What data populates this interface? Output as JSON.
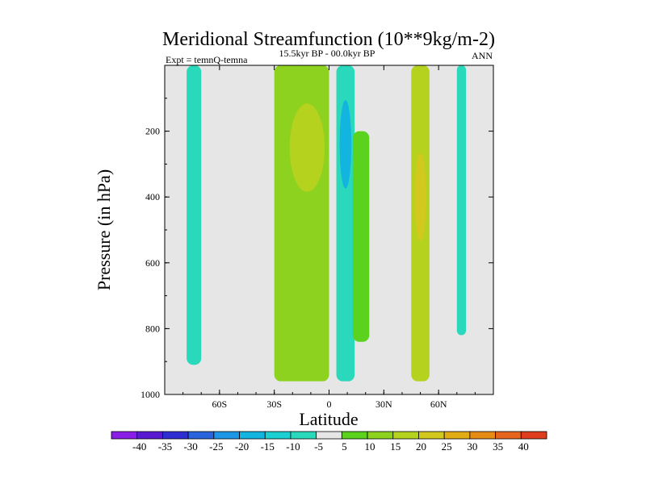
{
  "chart_data": {
    "type": "contour",
    "title": "Meridional Streamfunction (10**9kg/m-2)",
    "subtitle": "15.5kyr BP - 00.0kyr BP",
    "left_label": "Expt = temnQ-temna",
    "right_label": "ANN",
    "xlabel": "Latitude",
    "ylabel": "Pressure (in hPa)",
    "xlim": [
      -90,
      90
    ],
    "ylim": [
      1000,
      0
    ],
    "x_ticks": [
      {
        "value": -60,
        "label": "60S"
      },
      {
        "value": -30,
        "label": "30S"
      },
      {
        "value": 0,
        "label": "0"
      },
      {
        "value": 30,
        "label": "30N"
      },
      {
        "value": 60,
        "label": "60N"
      }
    ],
    "y_ticks": [
      {
        "value": 200,
        "label": "200"
      },
      {
        "value": 400,
        "label": "400"
      },
      {
        "value": 600,
        "label": "600"
      },
      {
        "value": 800,
        "label": "800"
      },
      {
        "value": 1000,
        "label": "1000"
      }
    ],
    "colorbar": {
      "colors": [
        "#8a1ee6",
        "#5a1ad2",
        "#2e2ed2",
        "#2a64dc",
        "#1e96e6",
        "#14b4e0",
        "#1ccfd2",
        "#2ad8bc",
        "#e6e6e6",
        "#5ad21e",
        "#8cd21e",
        "#b4d21e",
        "#d2c81e",
        "#e1ac14",
        "#e68c14",
        "#e6641e",
        "#e03c1e"
      ],
      "labels": [
        "-40",
        "-35",
        "-30",
        "-25",
        "-20",
        "-15",
        "-10",
        "-5",
        "5",
        "10",
        "15",
        "20",
        "25",
        "30",
        "35",
        "40"
      ]
    },
    "features": [
      {
        "name": "southern-high-latitude-cell",
        "x_range": [
          -78,
          -70
        ],
        "p_range": [
          0,
          910
        ],
        "value": -7
      },
      {
        "name": "southern-subtropical-cell",
        "x_range": [
          -30,
          0
        ],
        "p_range": [
          0,
          960
        ],
        "value": 10,
        "max": 18,
        "max_at": {
          "x": -12,
          "p": 250
        }
      },
      {
        "name": "equatorial-negative-cell",
        "x_range": [
          4,
          14
        ],
        "p_range": [
          0,
          960
        ],
        "value": -8,
        "min": -15,
        "min_at": {
          "x": 9,
          "p": 240
        }
      },
      {
        "name": "northern-subtropical-cell",
        "x_range": [
          13,
          22
        ],
        "p_range": [
          200,
          840
        ],
        "value": 9
      },
      {
        "name": "northern-midlatitude-cell",
        "x_range": [
          45,
          55
        ],
        "p_range": [
          0,
          960
        ],
        "value": 15,
        "max": 20,
        "max_at": {
          "x": 50,
          "p": 400
        }
      },
      {
        "name": "northern-high-latitude-cell",
        "x_range": [
          70,
          75
        ],
        "p_range": [
          0,
          820
        ],
        "value": -7
      }
    ],
    "grid": false
  }
}
